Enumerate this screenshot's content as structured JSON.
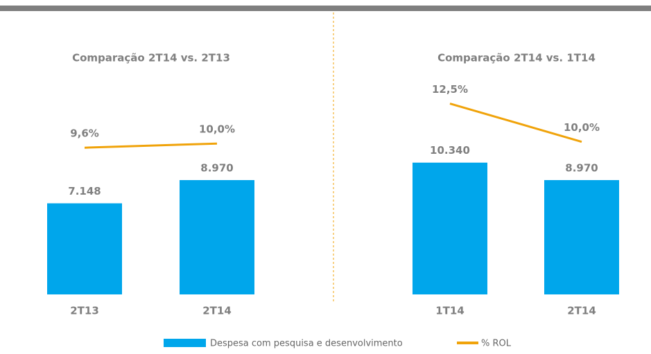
{
  "chart_data": [
    {
      "type": "bar-line",
      "title": "Comparação 2T14 vs. 2T13",
      "categories": [
        "2T13",
        "2T14"
      ],
      "series": [
        {
          "name": "Despesa com pesquisa e desenvolvimento",
          "color": "#00a6eb",
          "type": "bar",
          "values": [
            7148,
            8970
          ],
          "value_labels": [
            "7.148",
            "8.970"
          ]
        },
        {
          "name": "% ROL",
          "color": "#f0a30a",
          "type": "line",
          "axis": "y2",
          "values": [
            9.6,
            10.0
          ],
          "value_labels": [
            "9,6%",
            "10,0%"
          ]
        }
      ],
      "ylim": [
        0,
        20000
      ],
      "y2lim": [
        -4.5,
        20
      ]
    },
    {
      "type": "bar-line",
      "title": "Comparação 2T14 vs. 1T14",
      "categories": [
        "1T14",
        "2T14"
      ],
      "series": [
        {
          "color": "#00a6eb",
          "type": "bar",
          "values": [
            10340,
            8970
          ],
          "value_labels": [
            "10.340",
            "8.970"
          ]
        },
        {
          "color": "#f0a30a",
          "type": "line",
          "axis": "y2",
          "values": [
            12.5,
            10.0
          ],
          "value_labels": [
            "12,5%",
            "10,0%"
          ]
        }
      ],
      "ylim": [
        0,
        20000
      ],
      "y2lim": [
        0,
        16.7
      ]
    }
  ]
}
